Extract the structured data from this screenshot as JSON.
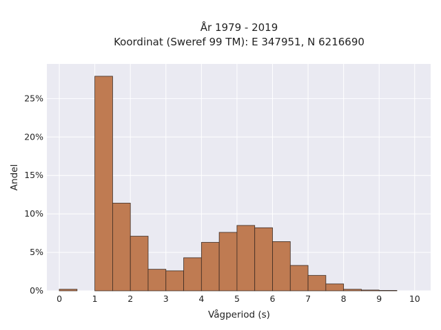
{
  "chart_data": {
    "type": "bar",
    "title_line1": "År 1979 - 2019",
    "title_line2": "Koordinat (Sweref 99 TM): E 347951, N 6216690",
    "xlabel": "Vågperiod (s)",
    "ylabel": "Andel",
    "xlim": [
      -0.35,
      10.45
    ],
    "ylim": [
      0,
      0.295
    ],
    "x_ticks": [
      0,
      1,
      2,
      3,
      4,
      5,
      6,
      7,
      8,
      9,
      10
    ],
    "y_ticks": [
      0,
      0.05,
      0.1,
      0.15,
      0.2,
      0.25
    ],
    "y_tick_labels": [
      "0%",
      "5%",
      "10%",
      "15%",
      "20%",
      "25%"
    ],
    "grid": true,
    "bar_color": "#bf7b52",
    "edge_color": "#3a2a22",
    "background_color": "#eaeaf2",
    "bins": [
      {
        "x0": 0.0,
        "x1": 0.5,
        "value": 0.002
      },
      {
        "x0": 0.5,
        "x1": 1.0,
        "value": 0.0
      },
      {
        "x0": 1.0,
        "x1": 1.5,
        "value": 0.279
      },
      {
        "x0": 1.5,
        "x1": 2.0,
        "value": 0.114
      },
      {
        "x0": 2.0,
        "x1": 2.5,
        "value": 0.071
      },
      {
        "x0": 2.5,
        "x1": 3.0,
        "value": 0.028
      },
      {
        "x0": 3.0,
        "x1": 3.5,
        "value": 0.026
      },
      {
        "x0": 3.5,
        "x1": 4.0,
        "value": 0.043
      },
      {
        "x0": 4.0,
        "x1": 4.5,
        "value": 0.063
      },
      {
        "x0": 4.5,
        "x1": 5.0,
        "value": 0.076
      },
      {
        "x0": 5.0,
        "x1": 5.5,
        "value": 0.085
      },
      {
        "x0": 5.5,
        "x1": 6.0,
        "value": 0.082
      },
      {
        "x0": 6.0,
        "x1": 6.5,
        "value": 0.064
      },
      {
        "x0": 6.5,
        "x1": 7.0,
        "value": 0.033
      },
      {
        "x0": 7.0,
        "x1": 7.5,
        "value": 0.02
      },
      {
        "x0": 7.5,
        "x1": 8.0,
        "value": 0.009
      },
      {
        "x0": 8.0,
        "x1": 8.5,
        "value": 0.002
      },
      {
        "x0": 8.5,
        "x1": 9.0,
        "value": 0.001
      },
      {
        "x0": 9.0,
        "x1": 9.5,
        "value": 0.0005
      }
    ]
  }
}
